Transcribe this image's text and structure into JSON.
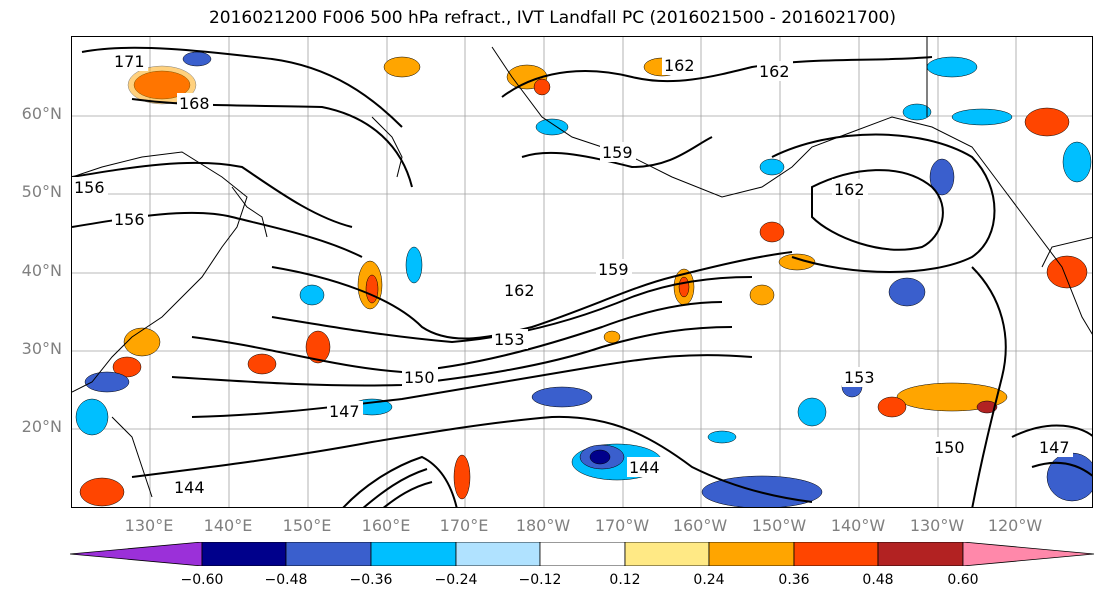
{
  "title": "2016021200 F006 500 hPa refract., IVT Landfall PC (2016021500 - 2016021700)",
  "lat_labels": [
    "60°N",
    "50°N",
    "40°N",
    "30°N",
    "20°N"
  ],
  "lon_labels": [
    "130°E",
    "140°E",
    "150°E",
    "160°E",
    "170°E",
    "180°W",
    "170°W",
    "160°W",
    "150°W",
    "140°W",
    "130°W",
    "120°W"
  ],
  "contour_labels": [
    "171",
    "168",
    "162",
    "162",
    "162",
    "159",
    "156",
    "153",
    "150",
    "147",
    "144",
    "162",
    "159",
    "156",
    "153",
    "150",
    "147",
    "144"
  ],
  "colorbar": {
    "colors": [
      "#9b30d9",
      "#00008b",
      "#3a5fcd",
      "#00bfff",
      "#b0e2ff",
      "#ffffff",
      "#ffe985",
      "#ffa500",
      "#ff4500",
      "#b22222",
      "#ff88aa"
    ],
    "ticks": [
      "−0.60",
      "−0.48",
      "−0.36",
      "−0.24",
      "−0.12",
      "0.12",
      "0.24",
      "0.36",
      "0.48",
      "0.60"
    ]
  }
}
